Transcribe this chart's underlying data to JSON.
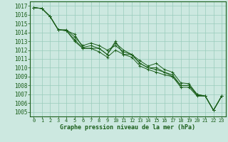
{
  "background_color": "#cce8e0",
  "grid_color": "#99ccbb",
  "line_color": "#1a5e1a",
  "marker_color": "#1a5e1a",
  "xlabel": "Graphe pression niveau de la mer (hPa)",
  "xlabel_fontsize": 6.0,
  "ylabel_fontsize": 5.5,
  "tick_fontsize": 5.0,
  "ylim": [
    1004.5,
    1017.5
  ],
  "xlim": [
    -0.5,
    23.5
  ],
  "yticks": [
    1005,
    1006,
    1007,
    1008,
    1009,
    1010,
    1011,
    1012,
    1013,
    1014,
    1015,
    1016,
    1017
  ],
  "xticks": [
    0,
    1,
    2,
    3,
    4,
    5,
    6,
    7,
    8,
    9,
    10,
    11,
    12,
    13,
    14,
    15,
    16,
    17,
    18,
    19,
    20,
    21,
    22,
    23
  ],
  "series": [
    [
      1016.8,
      1016.7,
      1015.8,
      1014.3,
      1014.2,
      1013.8,
      1012.3,
      1012.5,
      1012.2,
      1011.5,
      1013.0,
      1011.5,
      1011.5,
      1010.8,
      1010.2,
      1010.5,
      1009.8,
      1009.5,
      1008.3,
      1008.2,
      1007.0,
      1006.8,
      1005.2,
      1006.8
    ],
    [
      1016.8,
      1016.7,
      1015.8,
      1014.3,
      1014.3,
      1013.5,
      1012.5,
      1012.8,
      1012.5,
      1012.0,
      1012.5,
      1011.8,
      1011.5,
      1010.5,
      1010.0,
      1010.0,
      1009.5,
      1009.2,
      1008.0,
      1008.0,
      1006.9,
      1006.8,
      1005.2,
      1006.8
    ],
    [
      1016.8,
      1016.7,
      1015.8,
      1014.3,
      1014.2,
      1013.2,
      1012.2,
      1012.2,
      1011.8,
      1011.2,
      1012.0,
      1011.5,
      1011.2,
      1010.2,
      1009.8,
      1009.5,
      1009.2,
      1009.0,
      1007.8,
      1007.8,
      1006.8,
      1006.8,
      1005.2,
      1006.8
    ],
    [
      1016.8,
      1016.7,
      1015.8,
      1014.3,
      1014.2,
      1013.0,
      1012.2,
      1012.2,
      1012.2,
      1011.5,
      1012.8,
      1012.0,
      1011.5,
      1010.5,
      1010.0,
      1009.8,
      1009.5,
      1009.0,
      1008.0,
      1008.0,
      1007.0,
      1006.8,
      1005.2,
      1006.8
    ]
  ]
}
